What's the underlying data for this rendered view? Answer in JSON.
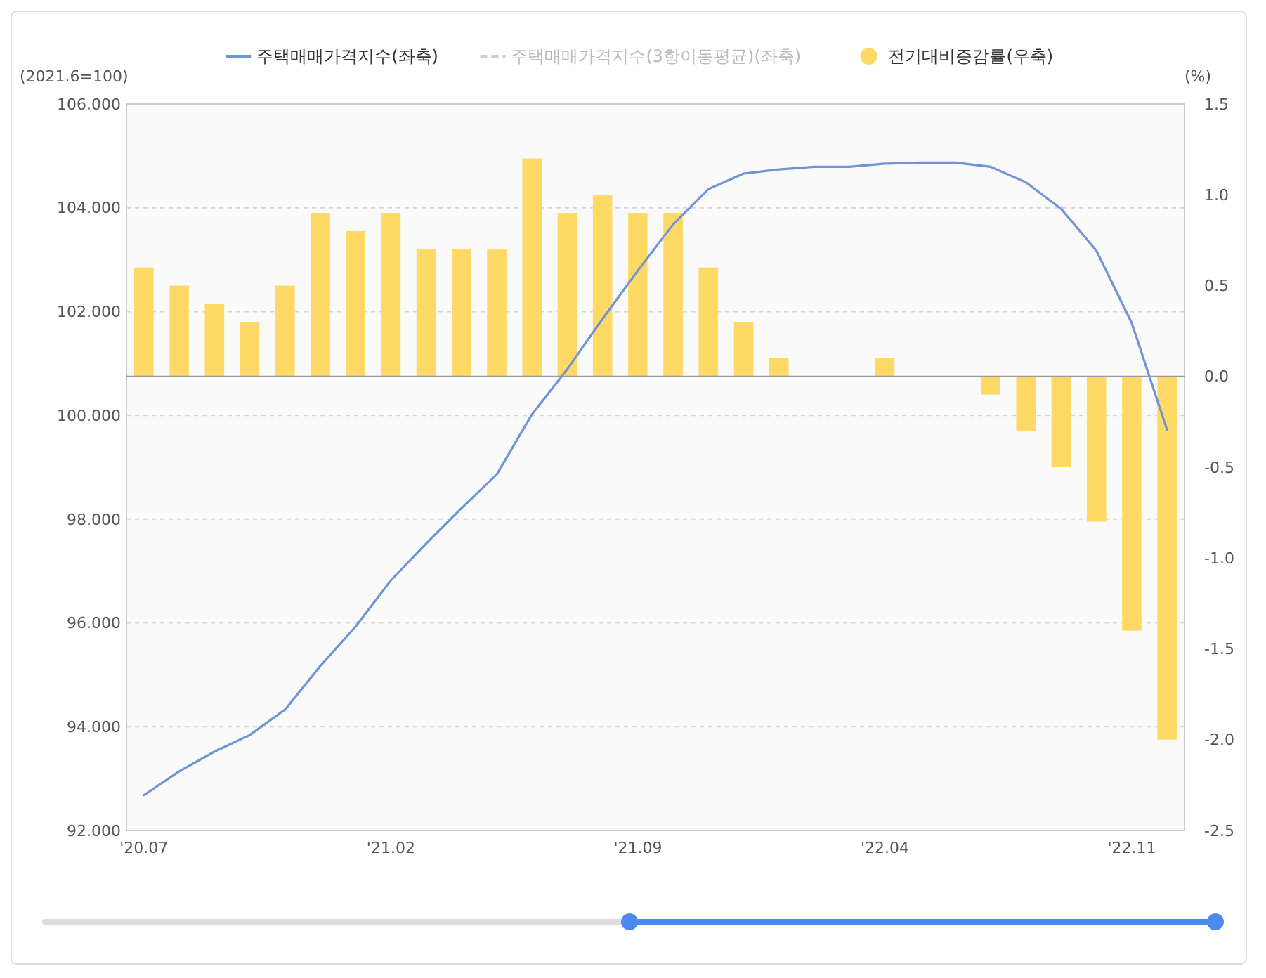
{
  "chart_data": {
    "type": "bar",
    "ylabel": "(2021.6=100)",
    "y2label": "(%)",
    "categories": [
      "'20.07",
      null,
      null,
      null,
      null,
      null,
      null,
      "'21.02",
      null,
      null,
      null,
      null,
      null,
      null,
      "'21.09",
      null,
      null,
      null,
      null,
      null,
      null,
      "'22.04",
      null,
      null,
      null,
      null,
      null,
      null,
      "'22.11",
      null
    ],
    "series": [
      {
        "name": "주택매매가격지수(좌축)",
        "type": "line",
        "color": "#6f93d8",
        "values": [
          92.68,
          93.14,
          93.52,
          93.84,
          94.33,
          95.17,
          95.93,
          96.82,
          97.53,
          98.21,
          98.86,
          100.02,
          100.89,
          101.86,
          102.79,
          103.68,
          104.36,
          104.66,
          104.74,
          104.79,
          104.79,
          104.85,
          104.87,
          104.87,
          104.79,
          104.49,
          103.98,
          103.17,
          101.78,
          99.72
        ]
      },
      {
        "name": "주택매매가격지수(3항이동평균)(좌축)",
        "type": "line",
        "line_style": "dashed",
        "color": "#cccccc",
        "values": [
          null,
          null,
          null,
          null,
          null,
          null,
          null,
          null,
          null,
          null,
          null,
          null,
          null,
          null,
          null,
          null,
          null,
          null,
          null,
          null,
          null,
          null,
          null,
          null,
          null,
          null,
          null,
          null,
          null,
          null
        ]
      },
      {
        "name": "전기대비증감률(우축)",
        "axis": "y2",
        "color": "#ffd966",
        "values": [
          0.6,
          0.5,
          0.4,
          0.3,
          0.5,
          0.9,
          0.8,
          0.9,
          0.7,
          0.7,
          0.7,
          1.2,
          0.9,
          1.0,
          0.9,
          0.9,
          0.6,
          0.3,
          0.1,
          0.0,
          0.0,
          0.1,
          0.0,
          0.0,
          -0.1,
          -0.3,
          -0.5,
          -0.8,
          -1.4,
          -2.0
        ]
      }
    ],
    "ylim": [
      92,
      106
    ],
    "yticks": [
      {
        "value": 92,
        "label": "92.000"
      },
      {
        "value": 94,
        "label": "94.000"
      },
      {
        "value": 96,
        "label": "96.000"
      },
      {
        "value": 98,
        "label": "98.000"
      },
      {
        "value": 100,
        "label": "100.000"
      },
      {
        "value": 102,
        "label": "102.000"
      },
      {
        "value": 104,
        "label": "104.000"
      },
      {
        "value": 106,
        "label": "106.000"
      }
    ],
    "y2lim": [
      -2.5,
      1.5
    ],
    "y2ticks": [
      -2.5,
      {
        "value": -2,
        "label": "-2.0"
      },
      -1.5,
      {
        "value": -1,
        "label": "-1.0"
      },
      -0.5,
      {
        "value": 0,
        "label": "0.0"
      },
      0.5,
      {
        "value": 1,
        "label": "1.0"
      },
      1.5
    ],
    "grid": "y",
    "legend": "top"
  }
}
